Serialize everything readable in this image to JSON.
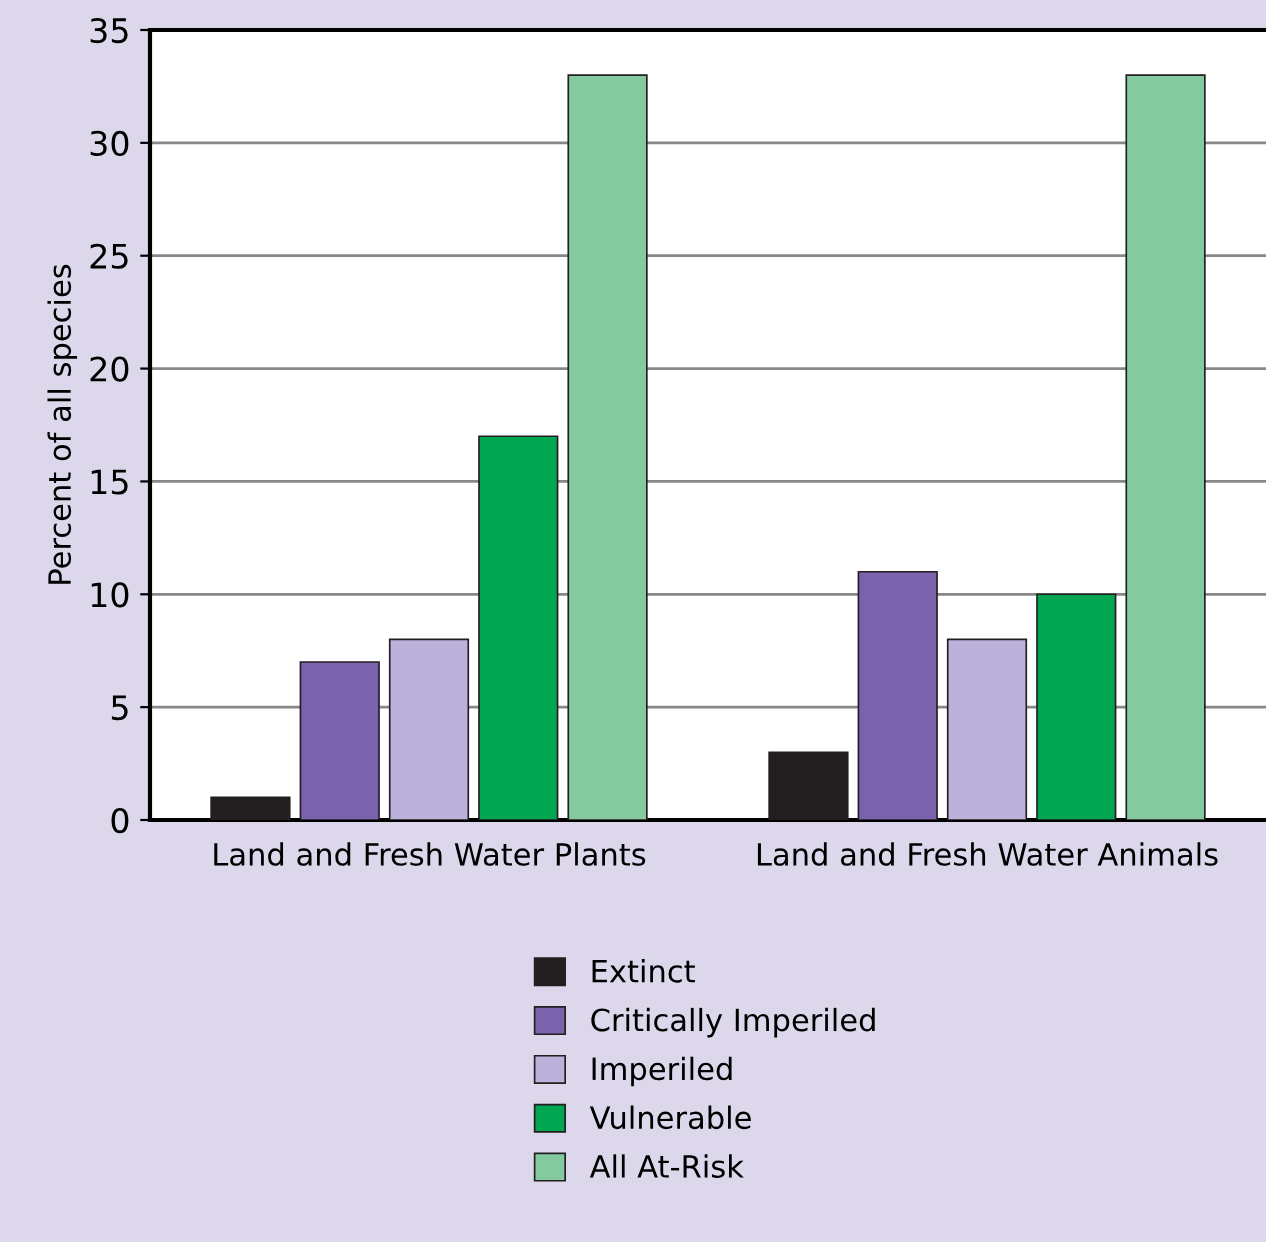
{
  "chart_data": {
    "type": "bar",
    "ylabel": "Percent of all species",
    "categories": [
      "Land and Fresh Water Plants",
      "Land and Fresh Water Animals"
    ],
    "series": [
      {
        "name": "Extinct",
        "color": "#231f20",
        "values": [
          1,
          3
        ]
      },
      {
        "name": "Critically Imperiled",
        "color": "#7b62ad",
        "values": [
          7,
          11
        ]
      },
      {
        "name": "Imperiled",
        "color": "#bcb1da",
        "values": [
          8,
          8
        ]
      },
      {
        "name": "Vulnerable",
        "color": "#00a651",
        "values": [
          17,
          10
        ]
      },
      {
        "name": "All At-Risk",
        "color": "#84c99f",
        "values": [
          33,
          33
        ]
      }
    ],
    "ylim": [
      0,
      35
    ],
    "yticks": [
      0,
      5,
      10,
      15,
      20,
      25,
      30,
      35
    ],
    "grid": "y",
    "legend": "bottom"
  }
}
